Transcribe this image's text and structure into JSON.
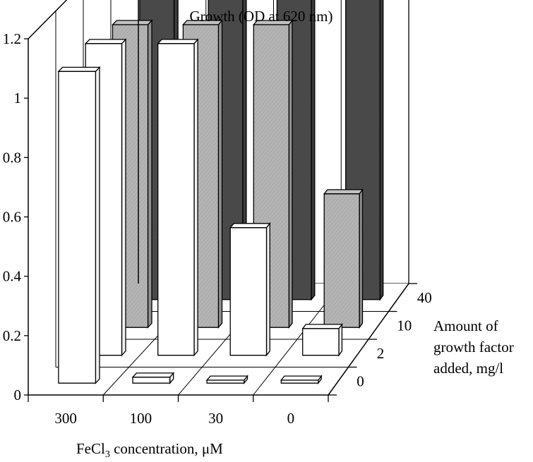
{
  "chart_data": {
    "type": "bar",
    "title": "Growth (OD at 620 nm)",
    "xlabel": {
      "prefix": "FeCl",
      "subscript": "3",
      "suffix": " concentration, μM"
    },
    "zlabel": [
      "Amount of",
      "growth factor",
      "added, mg/l"
    ],
    "categories": [
      "300",
      "100",
      "30",
      "0"
    ],
    "depth_categories": [
      "0",
      "2",
      "10",
      "40"
    ],
    "yticks": [
      "0",
      "0.2",
      "0.4",
      "0.6",
      "0.8",
      "1",
      "1.2"
    ],
    "ylim": [
      0,
      1.2
    ],
    "series": [
      {
        "values": [
          1.05,
          0.02,
          0.01,
          0.01
        ],
        "color": "#ffffff"
      },
      {
        "values": [
          1.05,
          1.05,
          0.43,
          0.09
        ],
        "color": "#ffffff"
      },
      {
        "values": [
          1.02,
          1.02,
          1.02,
          0.45
        ],
        "color": "#b4b4b4"
      },
      {
        "values": [
          1.04,
          1.04,
          1.04,
          1.06
        ],
        "color": "#4a4a4a"
      }
    ],
    "grid": true
  }
}
